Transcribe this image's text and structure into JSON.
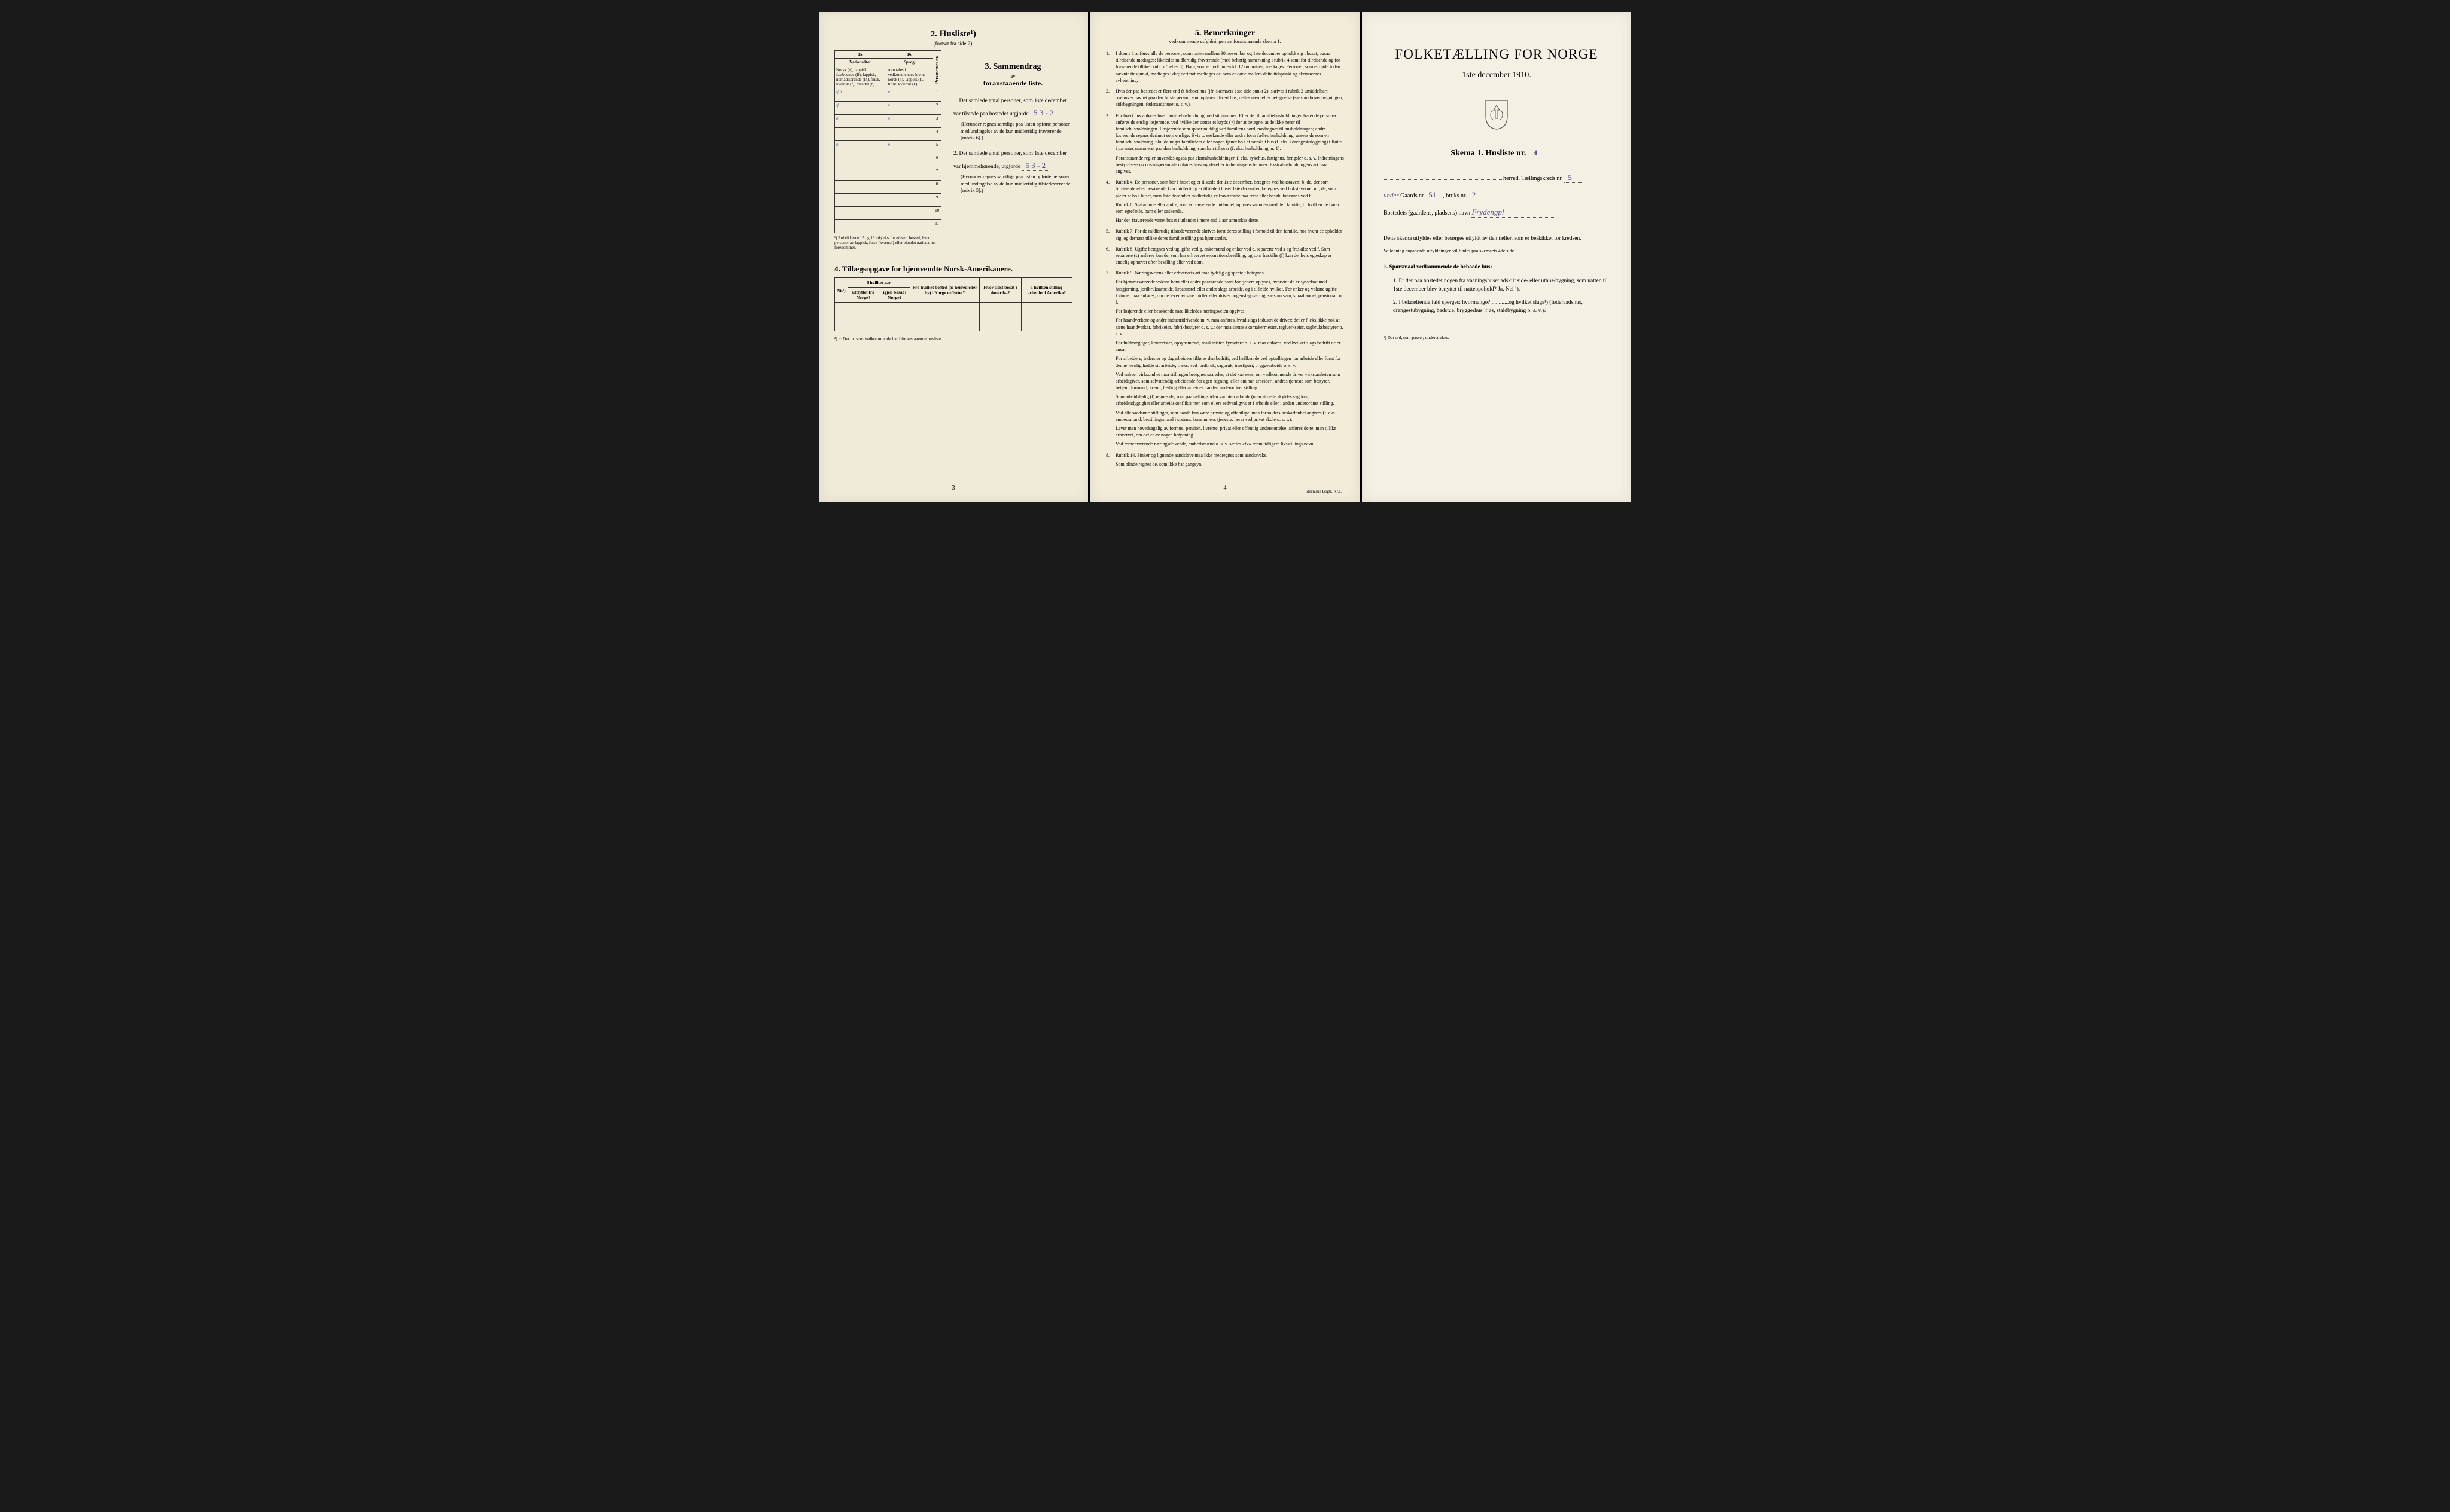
{
  "page1": {
    "sec2": {
      "num": "2.",
      "title": "Husliste¹)",
      "sub": "(fortsat fra side 2).",
      "col15": "15.",
      "col16": "16.",
      "h15": "Nationalitet.",
      "h16": "Sprog,",
      "desc15": "Norsk (n), lappisk, fastboende (lf), lappisk, nomadiserende (ln), finsk, kvænsk (f), blandet (b).",
      "desc16": "som tales i vedkommendes hjem: norsk (n), lappisk (l), finsk, kvænsk (k).",
      "pnr": "Personernes nr.",
      "rows": [
        {
          "n": "1",
          "a": "lf.b",
          "b": "n"
        },
        {
          "n": "2",
          "a": "lf",
          "b": "n"
        },
        {
          "n": "3",
          "a": "b",
          "b": "n"
        },
        {
          "n": "4",
          "a": "",
          "b": ""
        },
        {
          "n": "5",
          "a": "b",
          "b": "n"
        },
        {
          "n": "6",
          "a": "",
          "b": ""
        },
        {
          "n": "7",
          "a": "",
          "b": ""
        },
        {
          "n": "8",
          "a": "",
          "b": ""
        },
        {
          "n": "9",
          "a": "",
          "b": ""
        },
        {
          "n": "10",
          "a": "",
          "b": ""
        },
        {
          "n": "11",
          "a": "",
          "b": ""
        }
      ],
      "foot": "¹) Rubrikkerne 15 og 16 utfyldes for ethvert bosted, hvor personer av lappisk, finsk (kvænsk) eller blandet nationalitet forekommer."
    },
    "sec3": {
      "num": "3.",
      "title": "Sammendrag",
      "sub": "av",
      "bold": "foranstaaende liste.",
      "item1a": "1. Det samlede antal personer, som 1ste december",
      "item1b": "var tilstede paa bostedet utgjorde",
      "val1": "5  3 - 2",
      "item1c": "(Herunder regnes samtlige paa listen opførte personer med undtagelse av de kun midlertidig fraværende [rubrik 6].)",
      "item2a": "2. Det samlede antal personer, som 1ste december",
      "item2b": "var hjemmehørende, utgjorde",
      "val2": "5  3 - 2",
      "item2c": "(Herunder regnes samtlige paa listen opførte personer med undtagelse av de kun midlertidig tilstedeværende [rubrik 5].)"
    },
    "sec4": {
      "title": "4. Tillægsopgave for hjemvendte Norsk-Amerikanere.",
      "cols": [
        "Nr.²)",
        "I hvilket aar",
        "Fra hvilket bosted (ɔ: herred eller by) i Norge utflyttet?",
        "Hvor sidst bosat i Amerika?",
        "I hvilken stilling arbeidet i Amerika?"
      ],
      "sub1": "utflyttet fra Norge?",
      "sub2": "igjen bosat i Norge?",
      "foot": "²) ɔ: Det nr. som vedkommende har i foranstaaende husliste."
    },
    "pagenum": "3"
  },
  "page2": {
    "sec5": {
      "num": "5.",
      "title": "Bemerkninger",
      "sub": "vedkommende utfyldningen av foranstaaende skema 1."
    },
    "items": [
      "I skema 1 anføres alle de personer, som natten mellem 30 november og 1ste december opholdt sig i huset; ogsaa tilreisende medtages; likeledes midlertidig fraværende (med behørig anmerkning i rubrik 4 samt for tilreisende og for fraværende tillike i rubrik 5 eller 6). Barn, som er født inden kl. 12 om natten, medtages. Personer, som er døde inden nævnte tidspunkt, medtages ikke; derimot medtages de, som er døde mellem dette tidspunkt og skemaernes avhentning.",
      "Hvis der paa bostedet er flere end ét beboet hus (jfr. skemaets 1ste side punkt 2), skrives i rubrik 2 umiddelbart ovenover navnet paa den første person, som opføres i hvert hus, dettes navn eller betegnelse (saasom hovedbygningen, sidebygningen, føderaadshuset o. s. v.).",
      "For hvert hus anføres hver familiehusholdning med sit nummer. Efter de til familiehusholdningen hørende personer anføres de enslig losjerende, ved hvilke der sættes et kryds (×) for at betegne, at de ikke hører til familiehusholdningen. Losjerende som spiser middag ved familiens bord, medregnes til husholdningen; andre losjerende regnes derimot som enslige. Hvis to søskende eller andre fører fælles husholdning, ansees de som en familiehusholdning. Skulde noget familielem eller nogen tjener bo i et særskilt hus (f. eks. i drengestubygning) tilføies i parentes nummeret paa den husholdning, som han tilhører (f. eks. husholdning nr. 1).|Foranstaaende regler anvendes ogsaa paa ekstrahusholdninger, f. eks. sykehus, fattighus, fængsler o. s. v. Indretningens bestyrelses- og opsynspersonale opføres først og derefter indretningens lemmer. Ekstrahusholdningens art maa angives.",
      "Rubrik 4. De personer, som bor i huset og er tilstede der 1ste december, betegnes ved bokstaven: b; de, der som tilreisende eller besøkende kun midlertidig er tilstede i huset 1ste december, betegnes ved bokstaverne: mt; de, som pleier at bo i huset, men 1ste december midlertidig er fraværende paa reise eller besøk, betegnes ved f.|Rubrik 6. Sjøfarende eller andre, som er fraværende i utlandet, opføres sammen med den familie, til hvilken de hører som egtefælle, barn eller søskende.|Har den fraværende været bosat i utlandet i mere end 1 aar anmerkes dette.",
      "Rubrik 7. For de midlertidig tilstedeværende skrives først deres stilling i forhold til den familie, hos hvem de opholder sig, og dernæst tillike deres familiestilling paa hjemstedet.",
      "Rubrik 8. Ugifte betegnes ved ug, gifte ved g, enkemænd og enker ved e, separerte ved s og fraskilte ved f. Som separerte (s) anføres kun de, som har erhvervet separationsbevilling, og som fraskilte (f) kun de, hvis egteskap er endelig ophævet efter bevilling eller ved dom.",
      "Rubrik 9. Næringsveiens eller erhvervets art maa tydelig og specielt betegnes.|For hjemmeværende voksne barn eller andre paarørende samt for tjenere oplyses, hvorvidt de er sysselsat med husgjerning, jordbruksarbeide, kreaturstel eller andet slags arbeide, og i tilfælde hvilket. For enker og voksne ugifte kvinder maa anføres, om de lever av sine midler eller driver nogenslag næring, saasom søm, smaahandel, pensionat, o. l.|For losjerende eller besøkende maa likeledes næringsveien opgives.|For haandverkere og andre industridrivende m. v. maa anføres, hvad slags industri de driver; det er f. eks. ikke nok at sætte haandverker, fabrikeier, fabrikbestyrer o. s. v.; der maa sættes skomakermester, teglverkseier, sagbruksbestyrer o. s. v.|For fuldmægtiger, kontorister, opsynsmænd, maskinister, fyrbøtere o. s. v. maa anføres, ved hvilket slags bedrift de er ansat.|For arbeidere, inderster og dagarbeidere tilføies den bedrift, ved hvilken de ved optællingen har arbeide eller forut for denne jevnlig hadde sit arbeide, f. eks. ved jordbruk, sagbruk, træsliperi, bryggearbeide o. s. v.|Ved enhver virksomhet maa stillingen betegnes saaledes, at det kan sees, om vedkommende driver virksomheten som arbeidsgiver, som selvstændig arbeidende for egen regning, eller om han arbeider i andres tjeneste som bestyrer, betjent, formand, svend, lærling eller arbeider i anden underordnet stilling.|Som arbeidsledig (l) regnes de, som paa tællingstiden var uten arbeide (uten at dette skyldes sygdom, arbeidsudygtighet eller arbeidskonflikt) men som ellers sedvanligvis er i arbeide eller i anden underordnet stilling.|Ved alle saadanne stillinger, som baade kan være private og offentlige, maa forholdets beskaffenhet angives (f. eks. embedsmand, bestillingsmand i statens, kommunens tjeneste, lærer ved privat skole o. s. v.).|Lever man hovedsagelig av formue, pension, livrente, privat eller offentlig understøttelse, anføres dette, men tillike erhvervet, om det er av nogen betydning.|Ved forhenværende næringsdrivende, embedsmænd o. s. v. sættes «fv» foran tidligere livsstillings navn.",
      "Rubrik 14. Sinker og lignende aandsløve maa ikke medregnes som aandssvake.|Som blinde regnes de, som ikke har gangsyn."
    ],
    "pagenum": "4",
    "printer": "Steen'ske Bogtr. Kr.a."
  },
  "page3": {
    "title": "FOLKETÆLLING FOR NORGE",
    "date": "1ste december 1910.",
    "skema": "Skema 1. Husliste nr.",
    "skema_val": "4",
    "line1a": "herred. Tællingskreds nr.",
    "line1b": "5",
    "line2a": "Gaards nr.",
    "line2b": "51",
    "line2c": ", bruks nr.",
    "line2d": "2",
    "line2pre": "under",
    "line3a": "Bostedets (gaardens, pladsens) navn",
    "line3b": "Frydengpl",
    "block1": "Dette skema utfyldes eller besørges utfyldt av den tæller, som er beskikket for kredsen.",
    "block1b": "Veiledning angaaende utfyldningen vil findes paa skemaets 4de side.",
    "q_title": "1. Spørsmaal vedkommende de beboede hus:",
    "q1": "1. Er der paa bostedet nogen fra vaaningshuset adskilt side- eller uthus-bygning, som natten til 1ste december blev benyttet til natteopohold?  Ja.  Nei ¹).",
    "q2": "2. I bekræftende fald spørges: hvormange? ............og hvilket slags¹) (føderaadshus, drengestubygning, badstue, bryggerhus, fjøs, staldbygning o. s. v.)?",
    "foot": "¹) Det ord, som passer, understrekes."
  },
  "colors": {
    "paper": "#f0ead8",
    "ink": "#222222",
    "hand": "#5a5a9a"
  }
}
